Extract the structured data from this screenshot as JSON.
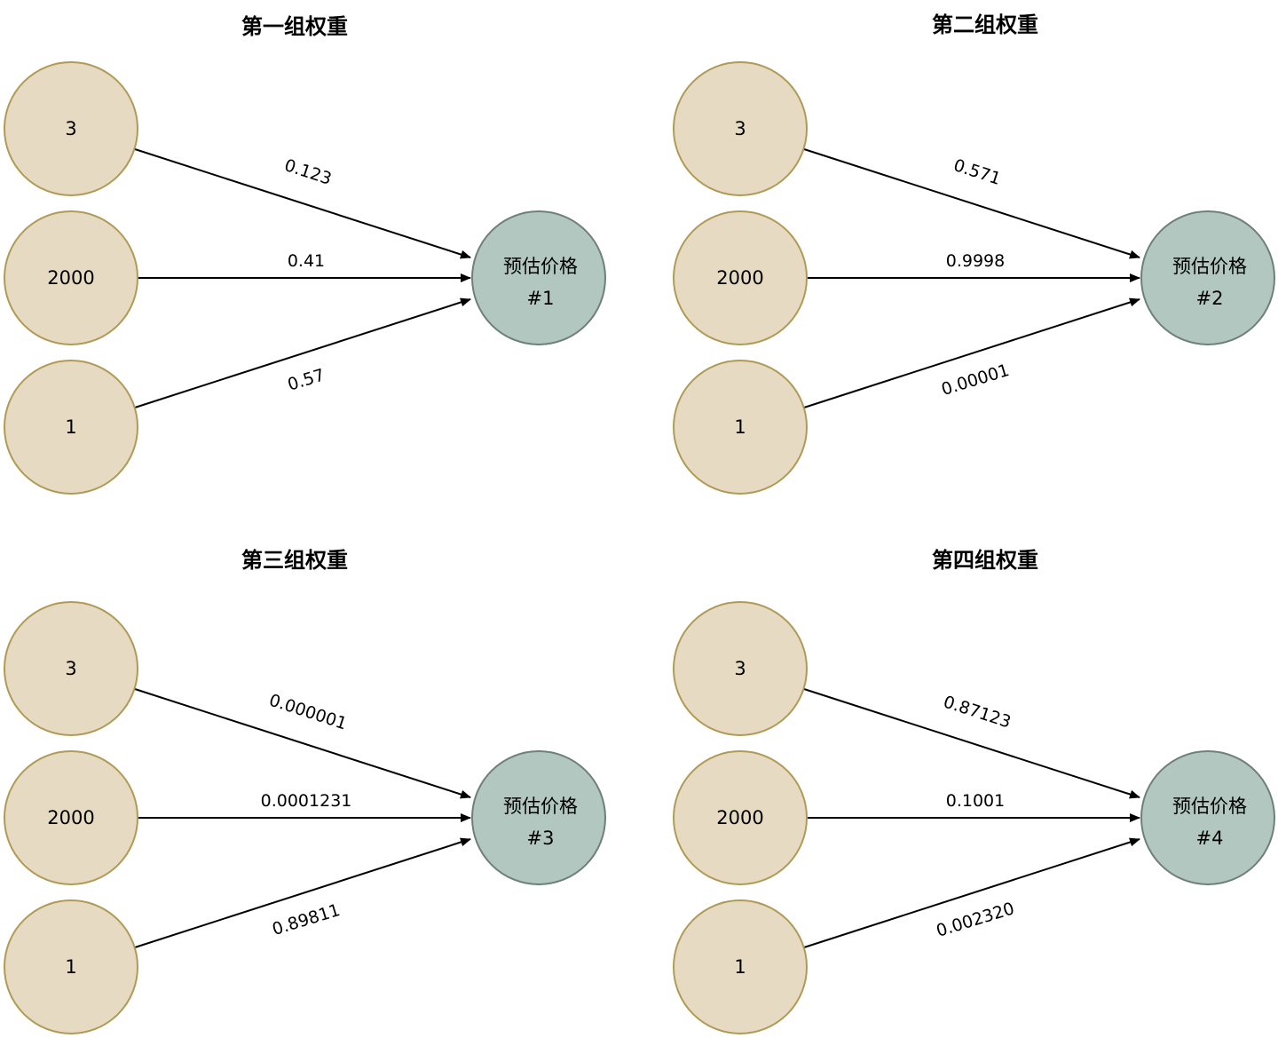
{
  "colors": {
    "input_fill": "#e6dbc2",
    "input_stroke": "#b09a55",
    "output_fill": "#b1c7bf",
    "output_stroke": "#6e8078"
  },
  "groups": [
    {
      "title": "第一组权重",
      "inputs": [
        "3",
        "2000",
        "1"
      ],
      "output": [
        "预估价格",
        "#1"
      ],
      "weights": [
        "0.123",
        "0.41",
        "0.57"
      ]
    },
    {
      "title": "第二组权重",
      "inputs": [
        "3",
        "2000",
        "1"
      ],
      "output": [
        "预估价格",
        "#2"
      ],
      "weights": [
        "0.571",
        "0.9998",
        "0.00001"
      ]
    },
    {
      "title": "第三组权重",
      "inputs": [
        "3",
        "2000",
        "1"
      ],
      "output": [
        "预估价格",
        "#3"
      ],
      "weights": [
        "0.000001",
        "0.0001231",
        "0.89811"
      ]
    },
    {
      "title": "第四组权重",
      "inputs": [
        "3",
        "2000",
        "1"
      ],
      "output": [
        "预估价格",
        "#4"
      ],
      "weights": [
        "0.87123",
        "0.1001",
        "0.002320"
      ]
    }
  ]
}
